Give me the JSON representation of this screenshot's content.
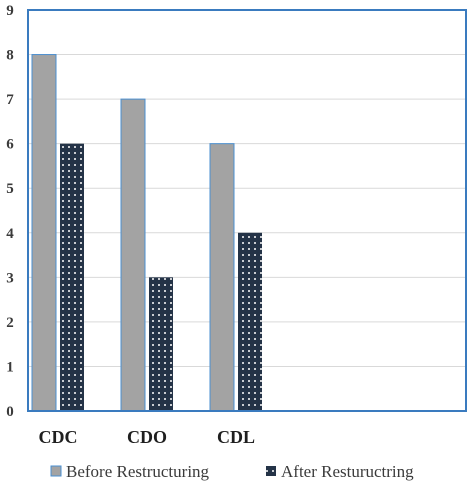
{
  "chart_data": {
    "type": "bar",
    "title": "",
    "xlabel": "",
    "ylabel": "",
    "categories": [
      "CDC",
      "CDO",
      "CDL"
    ],
    "series": [
      {
        "name": "Before Restructuring",
        "values": [
          8,
          7,
          6
        ],
        "color": "#a3a3a3",
        "pattern": "solid"
      },
      {
        "name": "After Restuructring",
        "values": [
          6,
          3,
          4
        ],
        "color": "#243347",
        "pattern": "white-dots"
      }
    ],
    "ylim": [
      0,
      9
    ],
    "yticks": [
      "0",
      "1",
      "2",
      "3",
      "4",
      "5",
      "6",
      "7",
      "8",
      "9"
    ],
    "grid": true,
    "legend_position": "bottom",
    "plot_border_color": "#3a7bbf",
    "bar_outline_color": "#4a8fd0"
  }
}
